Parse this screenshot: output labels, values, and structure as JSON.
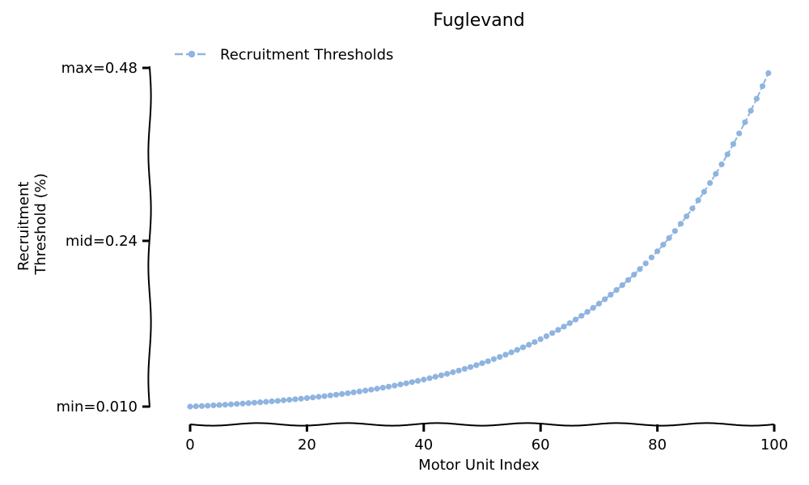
{
  "chart_data": {
    "type": "line",
    "title": "Fuglevand",
    "xlabel": "Motor Unit Index",
    "ylabel_lines": [
      "Recruitment",
      "Threshold (%)"
    ],
    "xlim": [
      0,
      100
    ],
    "ylim": [
      0.01,
      0.48
    ],
    "x_ticks": [
      0,
      20,
      40,
      60,
      80,
      100
    ],
    "x_tick_labels": [
      "0",
      "20",
      "40",
      "60",
      "80",
      "100"
    ],
    "y_ticks": [
      0.01,
      0.24,
      0.48
    ],
    "y_tick_labels": [
      "min=0.010",
      "mid=0.24",
      "max=0.48"
    ],
    "grid": false,
    "legend_position": "top-left",
    "series": [
      {
        "name": "Recruitment Thresholds",
        "color": "#8fb4df",
        "line_style": "dashed",
        "marker": "circle",
        "x": [
          0,
          1,
          2,
          3,
          4,
          5,
          6,
          7,
          8,
          9,
          10,
          11,
          12,
          13,
          14,
          15,
          16,
          17,
          18,
          19,
          20,
          21,
          22,
          23,
          24,
          25,
          26,
          27,
          28,
          29,
          30,
          31,
          32,
          33,
          34,
          35,
          36,
          37,
          38,
          39,
          40,
          41,
          42,
          43,
          44,
          45,
          46,
          47,
          48,
          49,
          50,
          51,
          52,
          53,
          54,
          55,
          56,
          57,
          58,
          59,
          60,
          61,
          62,
          63,
          64,
          65,
          66,
          67,
          68,
          69,
          70,
          71,
          72,
          73,
          74,
          75,
          76,
          77,
          78,
          79,
          80,
          81,
          82,
          83,
          84,
          85,
          86,
          87,
          88,
          89,
          90,
          91,
          92,
          93,
          94,
          95,
          96,
          97,
          98,
          99
        ],
        "y": [
          0.01,
          0.0104,
          0.0108,
          0.0112,
          0.0117,
          0.0122,
          0.0126,
          0.0131,
          0.0137,
          0.0142,
          0.0148,
          0.0154,
          0.016,
          0.0166,
          0.0173,
          0.0179,
          0.0187,
          0.0194,
          0.0202,
          0.021,
          0.0218,
          0.0227,
          0.0236,
          0.0245,
          0.0255,
          0.0265,
          0.0275,
          0.0286,
          0.0298,
          0.031,
          0.0322,
          0.0335,
          0.0348,
          0.0362,
          0.0376,
          0.0391,
          0.0407,
          0.0423,
          0.044,
          0.0457,
          0.0475,
          0.0494,
          0.0514,
          0.0534,
          0.0555,
          0.0577,
          0.06,
          0.0624,
          0.0649,
          0.0675,
          0.0702,
          0.073,
          0.0759,
          0.0789,
          0.082,
          0.0853,
          0.0887,
          0.0922,
          0.0958,
          0.0996,
          0.1036,
          0.1077,
          0.112,
          0.1164,
          0.121,
          0.1258,
          0.1308,
          0.136,
          0.1414,
          0.147,
          0.1529,
          0.159,
          0.1653,
          0.1718,
          0.1786,
          0.1857,
          0.1931,
          0.2008,
          0.2087,
          0.217,
          0.2256,
          0.2346,
          0.2439,
          0.2536,
          0.2637,
          0.2741,
          0.285,
          0.2963,
          0.3081,
          0.3203,
          0.333,
          0.3462,
          0.36,
          0.3743,
          0.3891,
          0.4046,
          0.4206,
          0.4373,
          0.4547,
          0.4727
        ]
      }
    ]
  }
}
